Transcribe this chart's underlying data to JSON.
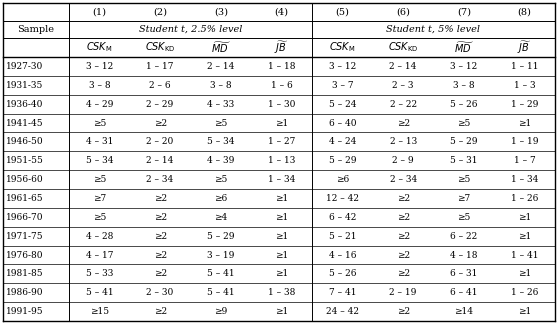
{
  "rows": [
    [
      "1927-30",
      "3 – 12",
      "1 – 17",
      "2 – 14",
      "1 – 18",
      "3 – 12",
      "2 – 14",
      "3 – 12",
      "1 – 11"
    ],
    [
      "1931-35",
      "3 – 8",
      "2 – 6",
      "3 – 8",
      "1 – 6",
      "3 – 7",
      "2 – 3",
      "3 – 8",
      "1 – 3"
    ],
    [
      "1936-40",
      "4 – 29",
      "2 – 29",
      "4 – 33",
      "1 – 30",
      "5 – 24",
      "2 – 22",
      "5 – 26",
      "1 – 29"
    ],
    [
      "1941-45",
      "≥5",
      "≥2",
      "≥5",
      "≥1",
      "6 – 40",
      "≥2",
      "≥5",
      "≥1"
    ],
    [
      "1946-50",
      "4 – 31",
      "2 – 20",
      "5 – 34",
      "1 – 27",
      "4 – 24",
      "2 – 13",
      "5 – 29",
      "1 – 19"
    ],
    [
      "1951-55",
      "5 – 34",
      "2 – 14",
      "4 – 39",
      "1 – 13",
      "5 – 29",
      "2 – 9",
      "5 – 31",
      "1 – 7"
    ],
    [
      "1956-60",
      "≥5",
      "2 – 34",
      "≥5",
      "1 – 34",
      "≥6",
      "2 – 34",
      "≥5",
      "1 – 34"
    ],
    [
      "1961-65",
      "≥7",
      "≥2",
      "≥6",
      "≥1",
      "12 – 42",
      "≥2",
      "≥7",
      "1 – 26"
    ],
    [
      "1966-70",
      "≥5",
      "≥2",
      "≥4",
      "≥1",
      "6 – 42",
      "≥2",
      "≥5",
      "≥1"
    ],
    [
      "1971-75",
      "4 – 28",
      "≥2",
      "5 – 29",
      "≥1",
      "5 – 21",
      "≥2",
      "6 – 22",
      "≥1"
    ],
    [
      "1976-80",
      "4 – 17",
      "≥2",
      "3 – 19",
      "≥1",
      "4 – 16",
      "≥2",
      "4 – 18",
      "1 – 41"
    ],
    [
      "1981-85",
      "5 – 33",
      "≥2",
      "5 – 41",
      "≥1",
      "5 – 26",
      "≥2",
      "6 – 31",
      "≥1"
    ],
    [
      "1986-90",
      "5 – 41",
      "2 – 30",
      "5 – 41",
      "1 – 38",
      "7 – 41",
      "2 – 19",
      "6 – 41",
      "1 – 26"
    ],
    [
      "1991-95",
      "≥15",
      "≥2",
      "≥9",
      "≥1",
      "24 – 42",
      "≥2",
      "≥14",
      "≥1"
    ]
  ],
  "col_nums": [
    "(1)",
    "(2)",
    "(3)",
    "(4)",
    "(5)",
    "(6)",
    "(7)",
    "(8)"
  ],
  "span_25": "Student t, 2.5% level",
  "span_5": "Student t, 5% level",
  "header_math": [
    "$CSK_\\mathrm{M}$",
    "$CSK_\\mathrm{KD}$",
    "$\\widetilde{MD}$",
    "$\\widetilde{JB}$",
    "$CSK_\\mathrm{M}$",
    "$CSK_\\mathrm{KD}$",
    "$\\widetilde{MD}$",
    "$\\widetilde{JB}$"
  ],
  "sample_label": "Sample",
  "figsize": [
    5.58,
    3.23
  ],
  "dpi": 100
}
